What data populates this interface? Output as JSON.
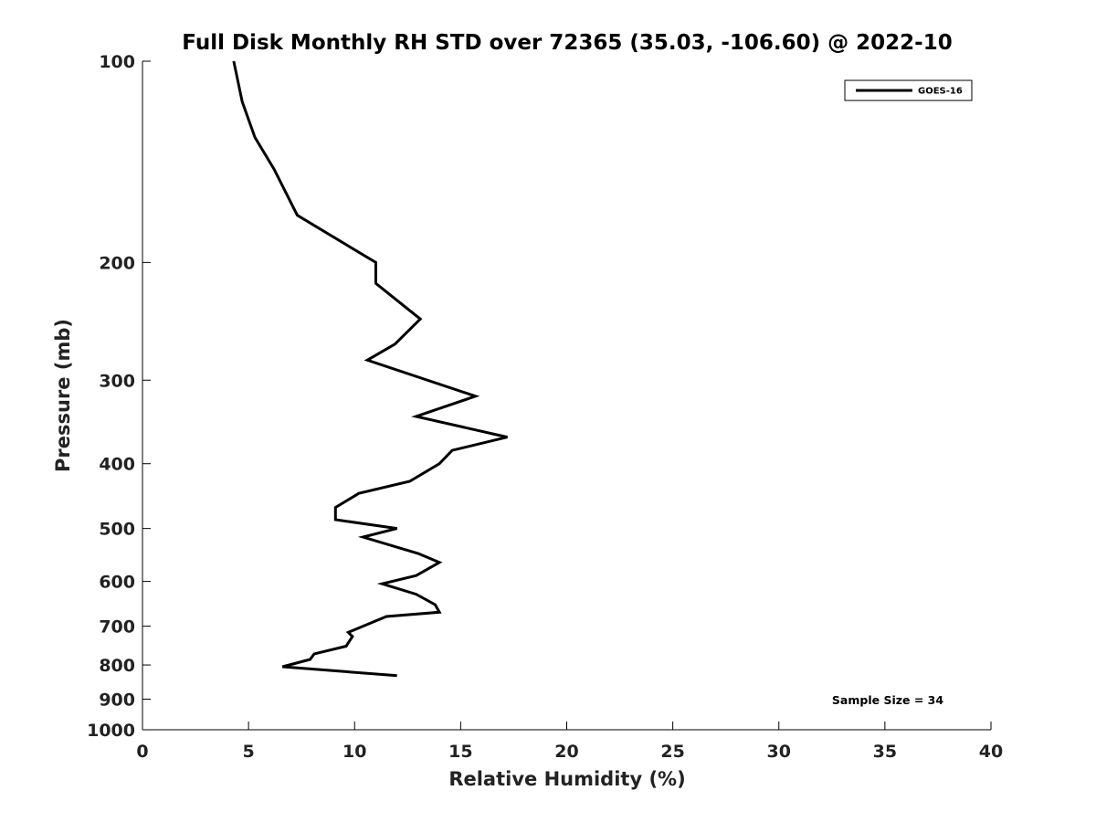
{
  "chart_data": {
    "type": "line",
    "title": "Full Disk Monthly RH STD over 72365 (35.03, -106.60) @ 2022-10",
    "xlabel": "Relative Humidity (%)",
    "ylabel": "Pressure (mb)",
    "xlim": [
      0,
      40
    ],
    "ylim": [
      100,
      1000
    ],
    "yscale": "log",
    "y_reversed": true,
    "x_ticks": [
      0,
      5,
      10,
      15,
      20,
      25,
      30,
      35,
      40
    ],
    "x_tick_labels": [
      "0",
      "5",
      "10",
      "15",
      "20",
      "25",
      "30",
      "35",
      "40"
    ],
    "y_ticks": [
      100,
      200,
      300,
      400,
      500,
      600,
      700,
      800,
      900,
      1000
    ],
    "y_tick_labels": [
      "100",
      "200",
      "300",
      "400",
      "500",
      "600",
      "700",
      "800",
      "900",
      "1000"
    ],
    "grid": false,
    "legend_position": "top-right",
    "series": [
      {
        "name": "GOES-16",
        "color": "#000000",
        "x": [
          4.3,
          4.7,
          5.3,
          6.2,
          7.3,
          11.0,
          11.0,
          13.1,
          11.9,
          10.6,
          15.7,
          12.9,
          17.2,
          14.6,
          14.0,
          12.6,
          10.2,
          9.1,
          9.1,
          12.0,
          10.4,
          13.0,
          14.0,
          12.9,
          11.3,
          12.9,
          13.8,
          14.0,
          11.5,
          10.4,
          9.7,
          9.9,
          9.6,
          8.1,
          7.9,
          6.6,
          12.0
        ],
        "y": [
          100,
          115,
          130,
          145,
          170,
          200,
          215,
          243,
          265,
          280,
          317,
          340,
          365,
          382,
          400,
          425,
          443,
          465,
          485,
          500,
          515,
          545,
          562,
          588,
          605,
          627,
          650,
          667,
          677,
          700,
          715,
          725,
          750,
          770,
          785,
          805,
          830
        ]
      }
    ],
    "annotations": [
      "Sample Size = 34"
    ]
  }
}
